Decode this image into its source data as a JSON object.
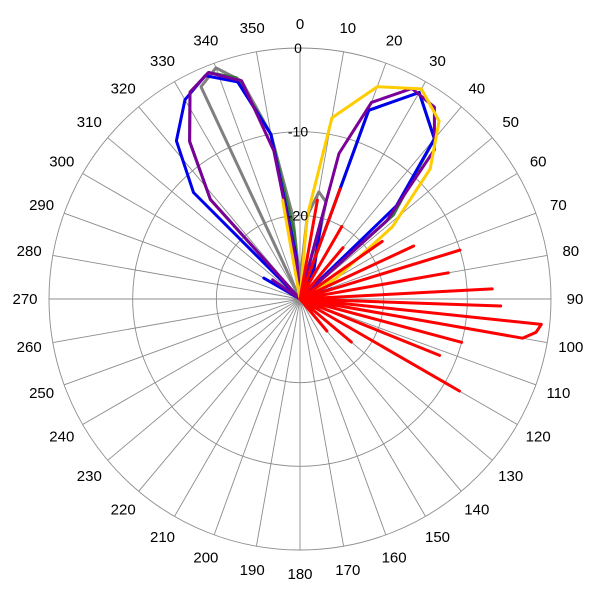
{
  "chart_data": {
    "type": "polar-line",
    "title": "",
    "angle_labels": [
      "0",
      "10",
      "20",
      "30",
      "40",
      "50",
      "60",
      "70",
      "80",
      "90",
      "100",
      "110",
      "120",
      "130",
      "140",
      "150",
      "160",
      "170",
      "180",
      "190",
      "200",
      "210",
      "220",
      "230",
      "240",
      "250",
      "260",
      "270",
      "280",
      "290",
      "300",
      "310",
      "320",
      "330",
      "340",
      "350"
    ],
    "radial_labels": [
      "0",
      "-10",
      "-20"
    ],
    "radial_range": [
      -30,
      0
    ],
    "grid": true,
    "series": [
      {
        "color": "#808080",
        "points": [
          [
            0,
            -30
          ],
          [
            330,
            -30
          ],
          [
            335,
            -2
          ],
          [
            340,
            -0.6
          ],
          [
            345,
            -3
          ],
          [
            350,
            -10
          ],
          [
            355,
            -20
          ],
          [
            0,
            -28
          ],
          [
            5,
            -20
          ],
          [
            10,
            -17
          ],
          [
            15,
            -18
          ],
          [
            20,
            -25
          ],
          [
            30,
            -30
          ]
        ]
      },
      {
        "color": "#2e7d32",
        "points": [
          [
            0,
            -30
          ],
          [
            310,
            -30
          ],
          [
            318,
            -14
          ],
          [
            325,
            -7
          ],
          [
            332,
            -2
          ],
          [
            338,
            -0.8
          ],
          [
            344,
            -2.5
          ],
          [
            350,
            -10
          ],
          [
            355,
            -22
          ],
          [
            0,
            -30
          ],
          [
            20,
            -6
          ],
          [
            30,
            -1.5
          ],
          [
            40,
            -5
          ],
          [
            48,
            -15
          ],
          [
            55,
            -30
          ],
          [
            65,
            -24
          ],
          [
            70,
            -30
          ]
        ]
      },
      {
        "color": "#0000ee",
        "points": [
          [
            0,
            -30
          ],
          [
            310,
            -30
          ],
          [
            315,
            -12
          ],
          [
            322,
            -6
          ],
          [
            330,
            -2.5
          ],
          [
            337,
            -1
          ],
          [
            344,
            -3
          ],
          [
            350,
            -10
          ],
          [
            355,
            -25
          ],
          [
            0,
            -30
          ],
          [
            20,
            -6
          ],
          [
            30,
            -1.5
          ],
          [
            40,
            -5
          ],
          [
            46,
            -14
          ],
          [
            52,
            -30
          ],
          [
            58,
            -26
          ],
          [
            60,
            -30
          ],
          [
            20,
            -30
          ],
          [
            15,
            -20
          ],
          [
            25,
            -26
          ],
          [
            30,
            -30
          ],
          [
            295,
            -30
          ],
          [
            300,
            -25
          ],
          [
            305,
            -30
          ]
        ]
      },
      {
        "color": "#7a0099",
        "points": [
          [
            0,
            -30
          ],
          [
            310,
            -30
          ],
          [
            318,
            -14
          ],
          [
            325,
            -7
          ],
          [
            332,
            -2
          ],
          [
            338,
            -0.8
          ],
          [
            345,
            -3
          ],
          [
            350,
            -12
          ],
          [
            355,
            -26
          ],
          [
            0,
            -30
          ],
          [
            15,
            -12
          ],
          [
            20,
            -5
          ],
          [
            28,
            -1.5
          ],
          [
            35,
            -2
          ],
          [
            42,
            -6
          ],
          [
            48,
            -16
          ],
          [
            55,
            -30
          ],
          [
            70,
            -30
          ],
          [
            72,
            -26
          ],
          [
            75,
            -30
          ],
          [
            300,
            -30
          ],
          [
            305,
            -26
          ],
          [
            310,
            -30
          ]
        ]
      },
      {
        "color": "#ffcc00",
        "points": [
          [
            0,
            -30
          ],
          [
            345,
            -30
          ],
          [
            350,
            -18
          ],
          [
            0,
            -30
          ],
          [
            5,
            -20
          ],
          [
            10,
            -8
          ],
          [
            20,
            -3
          ],
          [
            30,
            -1
          ],
          [
            38,
            -3
          ],
          [
            45,
            -8
          ],
          [
            52,
            -16
          ],
          [
            60,
            -25
          ],
          [
            65,
            -30
          ]
        ]
      },
      {
        "color": "#ff0000",
        "points": [
          [
            0,
            -30
          ],
          [
            10,
            -18
          ],
          [
            12,
            -30
          ],
          [
            20,
            -16
          ],
          [
            22,
            -30
          ],
          [
            30,
            -20
          ],
          [
            32,
            -30
          ],
          [
            40,
            -22
          ],
          [
            42,
            -30
          ],
          [
            55,
            -18
          ],
          [
            58,
            -30
          ],
          [
            65,
            -15
          ],
          [
            67,
            -30
          ],
          [
            73,
            -10
          ],
          [
            75,
            -30
          ],
          [
            80,
            -12
          ],
          [
            82,
            -30
          ],
          [
            87,
            -7
          ],
          [
            89,
            -30
          ],
          [
            92,
            -6
          ],
          [
            94,
            -30
          ],
          [
            96,
            -1
          ],
          [
            98,
            -1.5
          ],
          [
            100,
            -3
          ],
          [
            102,
            -30
          ],
          [
            105,
            -10
          ],
          [
            108,
            -30
          ],
          [
            112,
            -12
          ],
          [
            115,
            -30
          ],
          [
            120,
            -8
          ],
          [
            122,
            -30
          ],
          [
            130,
            -22
          ],
          [
            132,
            -30
          ],
          [
            140,
            -25
          ],
          [
            142,
            -30
          ]
        ]
      }
    ]
  }
}
